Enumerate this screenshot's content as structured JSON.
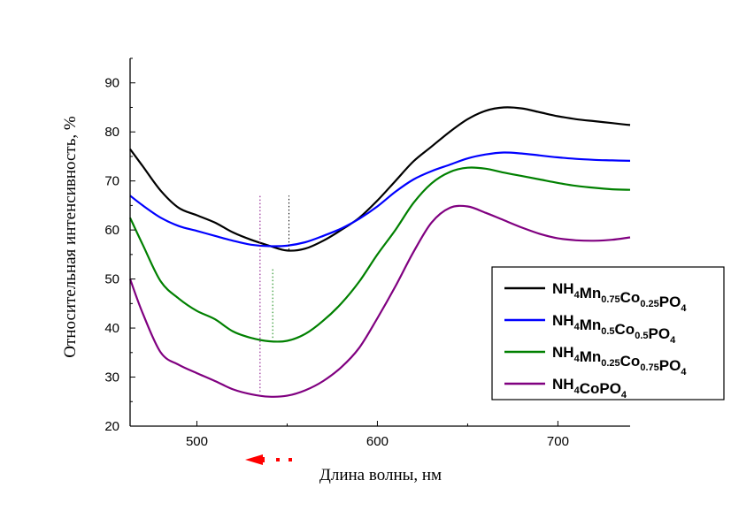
{
  "chart_data": {
    "type": "line",
    "xlabel": "Длина волны, нм",
    "ylabel": "Относительная интенсивность, %",
    "xlim": [
      463,
      740
    ],
    "ylim": [
      20,
      95
    ],
    "x_ticks": [
      500,
      600,
      700
    ],
    "y_ticks": [
      20,
      30,
      40,
      50,
      60,
      70,
      80,
      90
    ],
    "grid": false,
    "legend_position": "right",
    "series": [
      {
        "name": "NH4Mn0.75Co0.25PO4",
        "legend_parts": [
          [
            "NH",
            ""
          ],
          [
            "4",
            "sub"
          ],
          [
            "Mn",
            ""
          ],
          [
            "0.75",
            "sub"
          ],
          [
            "Co",
            ""
          ],
          [
            "0.25",
            "sub"
          ],
          [
            "PO",
            ""
          ],
          [
            "4",
            "sub"
          ]
        ],
        "color": "#000000",
        "x": [
          463,
          470,
          480,
          490,
          500,
          510,
          520,
          530,
          540,
          550,
          560,
          570,
          580,
          590,
          600,
          610,
          620,
          630,
          640,
          650,
          660,
          670,
          680,
          690,
          700,
          710,
          720,
          730,
          740
        ],
        "y": [
          76.5,
          73,
          68,
          64.5,
          63,
          61.5,
          59.5,
          58,
          56.8,
          55.8,
          56.2,
          57.8,
          60,
          62.5,
          66,
          70,
          74,
          77,
          80,
          82.6,
          84.3,
          85,
          84.8,
          84,
          83.2,
          82.6,
          82.2,
          81.8,
          81.4
        ]
      },
      {
        "name": "NH4Mn0.5Co0.5PO4",
        "legend_parts": [
          [
            "NH",
            ""
          ],
          [
            "4",
            "sub"
          ],
          [
            "Mn",
            ""
          ],
          [
            "0.5",
            "sub"
          ],
          [
            "Co",
            ""
          ],
          [
            "0.5",
            "sub"
          ],
          [
            "PO",
            ""
          ],
          [
            "4",
            "sub"
          ]
        ],
        "color": "#0000ff",
        "x": [
          463,
          470,
          480,
          490,
          500,
          510,
          520,
          530,
          540,
          550,
          560,
          570,
          580,
          590,
          600,
          610,
          620,
          630,
          640,
          650,
          660,
          670,
          680,
          690,
          700,
          710,
          720,
          730,
          740
        ],
        "y": [
          67,
          65,
          62.5,
          60.8,
          59.8,
          58.8,
          57.8,
          57,
          56.7,
          56.8,
          57.5,
          58.8,
          60.3,
          62.3,
          64.8,
          67.8,
          70.3,
          72,
          73.3,
          74.6,
          75.4,
          75.8,
          75.6,
          75.2,
          74.8,
          74.5,
          74.3,
          74.2,
          74.1
        ]
      },
      {
        "name": "NH4Mn0.25Co0.75PO4",
        "legend_parts": [
          [
            "NH",
            ""
          ],
          [
            "4",
            "sub"
          ],
          [
            "Mn",
            ""
          ],
          [
            "0.25",
            "sub"
          ],
          [
            "Co",
            ""
          ],
          [
            "0.75",
            "sub"
          ],
          [
            "PO",
            ""
          ],
          [
            "4",
            "sub"
          ]
        ],
        "color": "#008000",
        "x": [
          463,
          470,
          480,
          490,
          500,
          510,
          520,
          530,
          540,
          550,
          560,
          570,
          580,
          590,
          600,
          610,
          620,
          630,
          640,
          650,
          660,
          670,
          680,
          690,
          700,
          710,
          720,
          730,
          740
        ],
        "y": [
          62.5,
          57,
          49.5,
          46,
          43.5,
          41.8,
          39.3,
          38,
          37.3,
          37.4,
          38.8,
          41.5,
          45,
          49.5,
          55,
          60,
          65.5,
          69.5,
          71.8,
          72.7,
          72.5,
          71.7,
          71,
          70.3,
          69.6,
          69,
          68.6,
          68.3,
          68.2
        ]
      },
      {
        "name": "NH4CoPO4",
        "legend_parts": [
          [
            "NH",
            ""
          ],
          [
            "4",
            "sub"
          ],
          [
            "CoPO",
            ""
          ],
          [
            "4",
            "sub"
          ]
        ],
        "color": "#800080",
        "x": [
          463,
          470,
          480,
          490,
          500,
          510,
          520,
          530,
          540,
          550,
          560,
          570,
          580,
          590,
          600,
          610,
          620,
          630,
          640,
          650,
          660,
          670,
          680,
          690,
          700,
          710,
          720,
          730,
          740
        ],
        "y": [
          50,
          43,
          35,
          32.5,
          30.8,
          29.2,
          27.5,
          26.5,
          26,
          26.2,
          27.3,
          29.2,
          32,
          36,
          42,
          48.5,
          55.5,
          61.5,
          64.5,
          64.8,
          63.5,
          62,
          60.5,
          59.2,
          58.3,
          57.9,
          57.8,
          58,
          58.5
        ]
      }
    ],
    "annotations": {
      "vertical_marker_lines": [
        {
          "x": 535,
          "color": "#800080",
          "from_y": 27,
          "to_y": 67
        },
        {
          "x": 542,
          "color": "#008000",
          "from_y": 38,
          "to_y": 52
        },
        {
          "x": 551,
          "color": "#000000",
          "from_y": 56,
          "to_y": 67
        }
      ],
      "arrow_color": "#ff0000"
    }
  }
}
